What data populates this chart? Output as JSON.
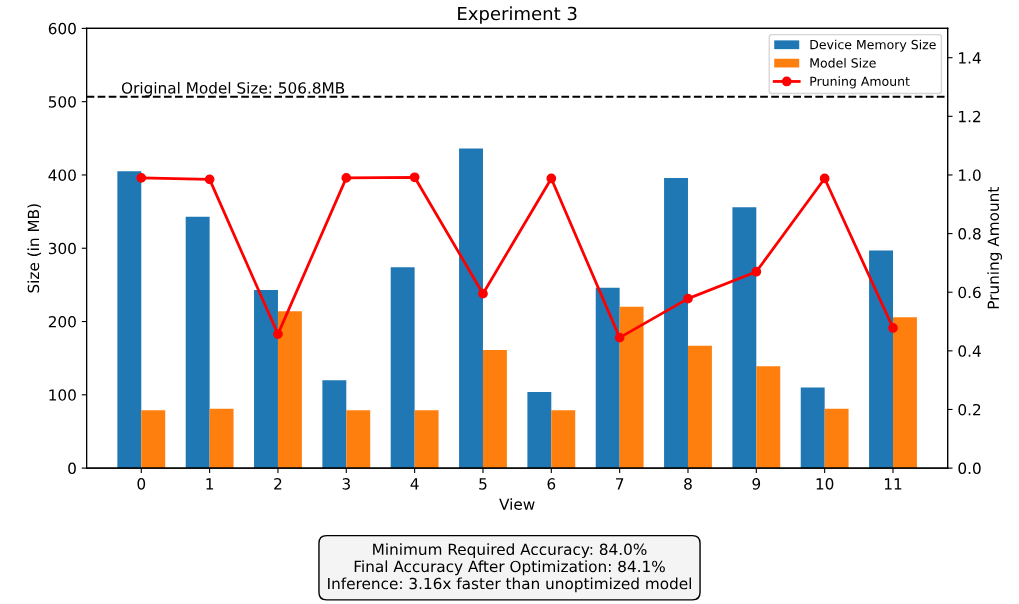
{
  "chart_data": {
    "type": "bar",
    "title": "Experiment 3",
    "xlabel": "View",
    "ylabel": "Size (in MB)",
    "y2label": "Pruning Amount",
    "categories": [
      "0",
      "1",
      "2",
      "3",
      "4",
      "5",
      "6",
      "7",
      "8",
      "9",
      "10",
      "11"
    ],
    "series": [
      {
        "name": "Device Memory Size",
        "color": "#1f77b4",
        "values": [
          405,
          343,
          243,
          120,
          274,
          436,
          104,
          246,
          396,
          356,
          110,
          297
        ]
      },
      {
        "name": "Model Size",
        "color": "#ff7f0e",
        "values": [
          79,
          81,
          214,
          79,
          79,
          161,
          79,
          220,
          167,
          139,
          81,
          206
        ]
      },
      {
        "name": "Pruning Amount",
        "type": "line",
        "axis": "y2",
        "color": "#ff0000",
        "marker": "circle",
        "values": [
          0.99,
          0.985,
          0.457,
          0.99,
          0.992,
          0.595,
          0.988,
          0.445,
          0.578,
          0.67,
          0.988,
          0.478
        ]
      }
    ],
    "ylim": [
      0,
      600
    ],
    "yticks": [
      0,
      100,
      200,
      300,
      400,
      500,
      600
    ],
    "y2lim": [
      0,
      1.5
    ],
    "y2ticks": [
      {
        "value": 0,
        "label": "0.0"
      },
      0.2,
      0.4,
      0.6,
      0.8,
      {
        "value": 1,
        "label": "1.0"
      },
      1.2,
      1.4
    ],
    "ref_lines": [
      {
        "axis": "y",
        "value": 506.8,
        "label": "Original Model Size: 506.8MB",
        "color": "#000000",
        "line_style": "dashed"
      }
    ],
    "annotations": [
      "Minimum Required Accuracy: 84.0%\nFinal Accuracy After Optimization: 84.1%\nInference: 3.16x faster than unoptimized model"
    ],
    "legend": "top right",
    "grid": false
  }
}
